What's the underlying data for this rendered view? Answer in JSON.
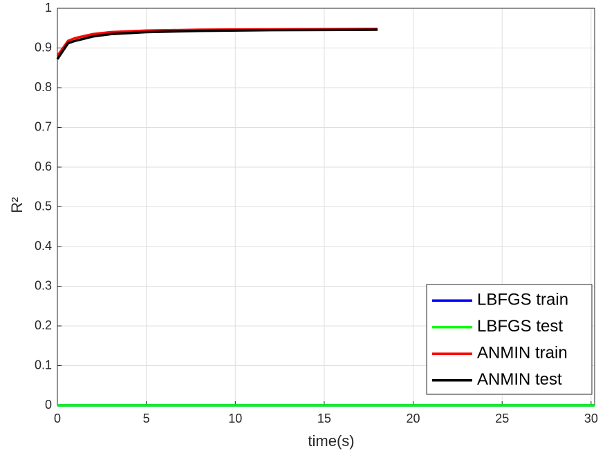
{
  "chart_data": {
    "type": "line",
    "xlabel": "time(s)",
    "ylabel": "R²",
    "xlim": [
      0,
      30.2
    ],
    "ylim": [
      0,
      1
    ],
    "xticks": [
      0,
      5,
      10,
      15,
      20,
      25,
      30
    ],
    "yticks": [
      0,
      0.1,
      0.2,
      0.3,
      0.4,
      0.5,
      0.6,
      0.7,
      0.8,
      0.9,
      1
    ],
    "grid": true,
    "legend": "lower right",
    "series": [
      {
        "name": "LBFGS train",
        "color": "#0000ff",
        "x": [
          0,
          30.2
        ],
        "values": [
          0,
          0
        ]
      },
      {
        "name": "LBFGS test",
        "color": "#00ff00",
        "x": [
          0,
          30.2
        ],
        "values": [
          0,
          0
        ]
      },
      {
        "name": "ANMIN train",
        "color": "#ff0000",
        "x": [
          0,
          0.6,
          1,
          2,
          3,
          5,
          8,
          12,
          18
        ],
        "values": [
          0.88,
          0.918,
          0.925,
          0.935,
          0.94,
          0.944,
          0.946,
          0.947,
          0.948
        ]
      },
      {
        "name": "ANMIN test",
        "color": "#000000",
        "x": [
          0,
          0.6,
          1,
          2,
          3,
          5,
          8,
          12,
          18
        ],
        "values": [
          0.872,
          0.912,
          0.918,
          0.929,
          0.935,
          0.94,
          0.943,
          0.945,
          0.946
        ]
      }
    ]
  }
}
